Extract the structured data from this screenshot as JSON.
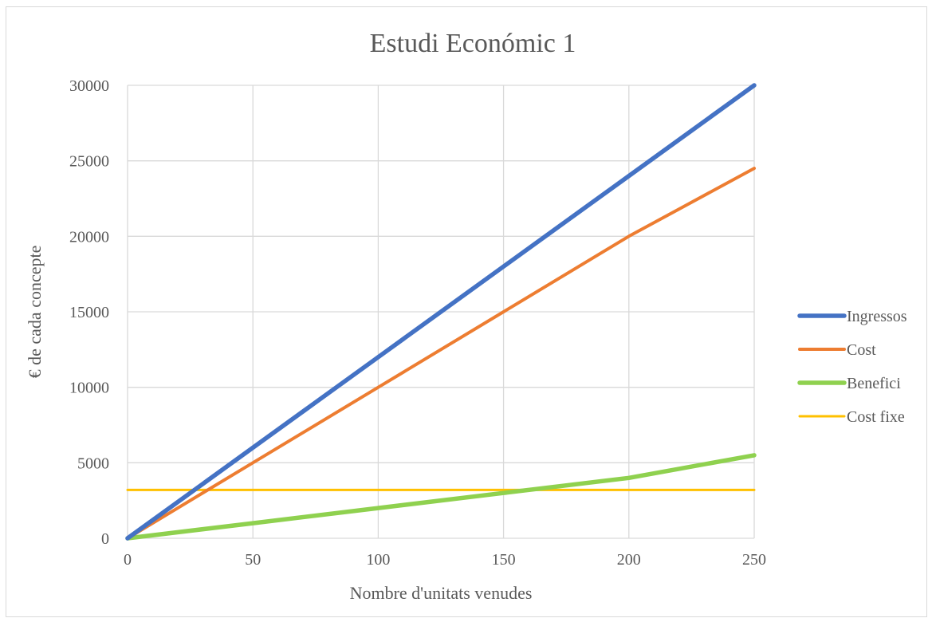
{
  "chart_data": {
    "type": "line",
    "title": "Estudi Económic 1",
    "xlabel": "Nombre d'unitats venudes",
    "ylabel": "€ de cada concepte",
    "xlim": [
      0,
      250
    ],
    "ylim": [
      0,
      30000
    ],
    "xticks": [
      "0",
      "50",
      "100",
      "150",
      "200",
      "250"
    ],
    "yticks": [
      "0",
      "5000",
      "10000",
      "15000",
      "20000",
      "25000",
      "30000"
    ],
    "grid": true,
    "legend_position": "right",
    "series": [
      {
        "name": "Ingressos",
        "color": "#4472c4",
        "x": [
          0,
          50,
          100,
          150,
          200,
          250
        ],
        "y": [
          0,
          6000,
          12000,
          18000,
          24000,
          30000
        ]
      },
      {
        "name": "Cost",
        "color": "#ed7d31",
        "x": [
          0,
          50,
          100,
          150,
          200,
          250
        ],
        "y": [
          0,
          5000,
          10000,
          15000,
          20000,
          24500
        ]
      },
      {
        "name": "Benefici",
        "color": "#8fd14f",
        "x": [
          0,
          50,
          100,
          150,
          200,
          250
        ],
        "y": [
          0,
          1000,
          2000,
          3000,
          4000,
          5500
        ]
      },
      {
        "name": "Cost fixe",
        "color": "#ffc000",
        "x": [
          0,
          250
        ],
        "y": [
          3200,
          3200
        ]
      }
    ]
  }
}
